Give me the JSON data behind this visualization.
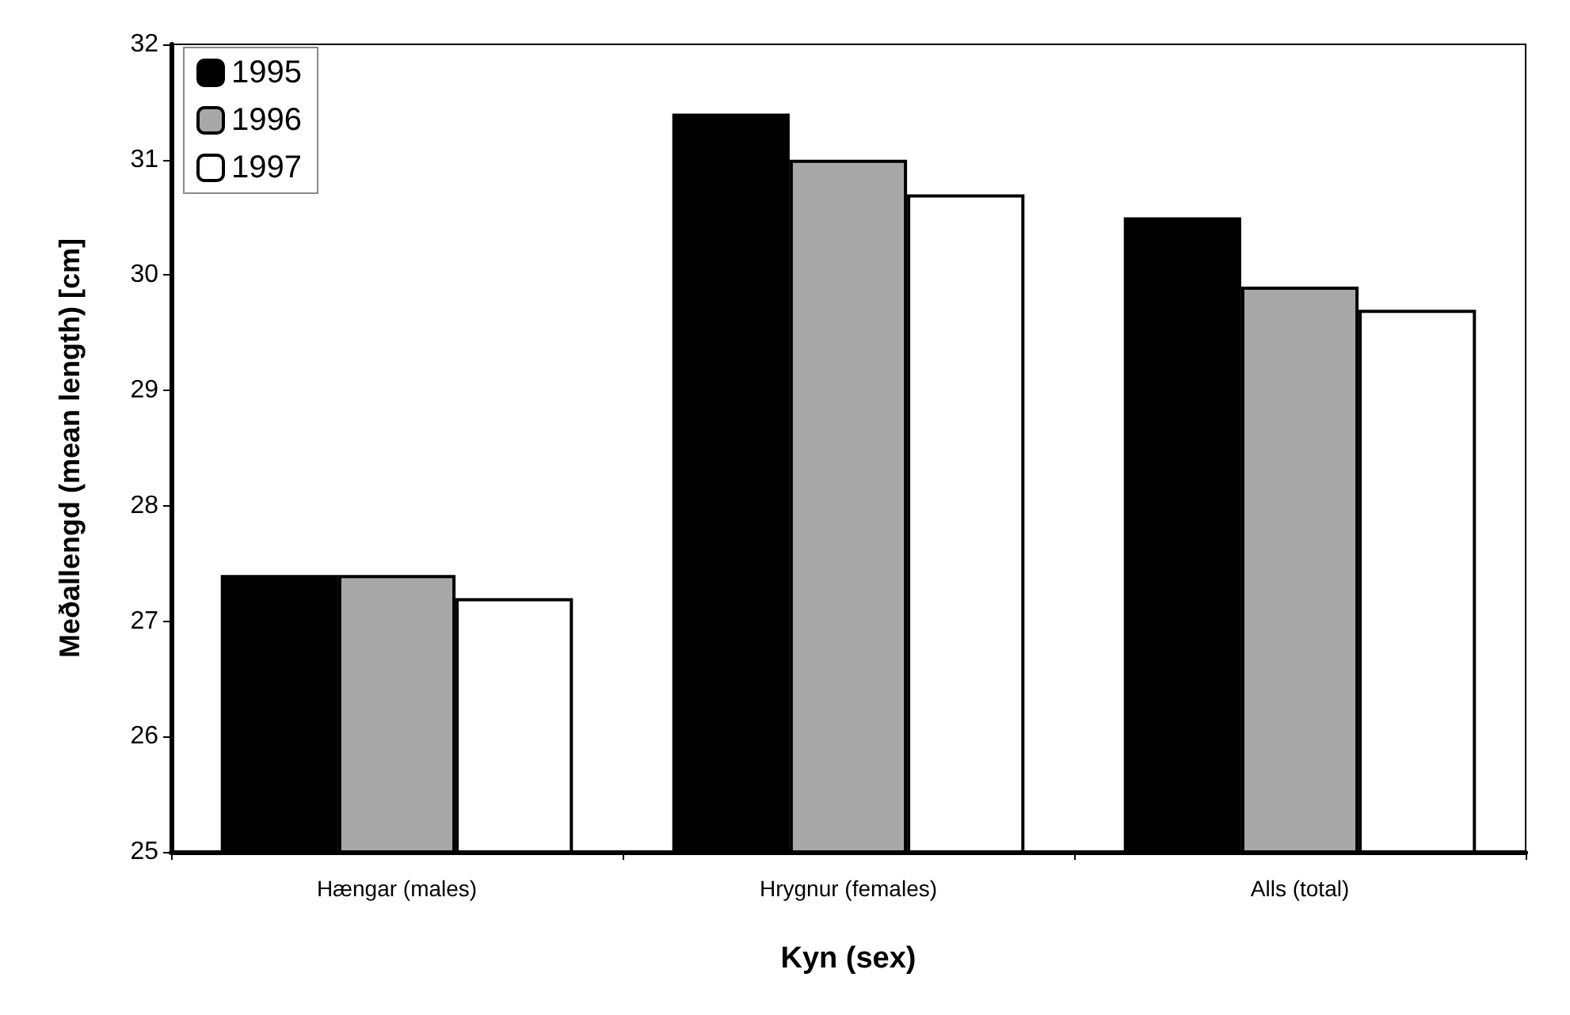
{
  "chart_data": {
    "type": "bar",
    "xlabel": "Kyn (sex)",
    "ylabel": "Meðallengd (mean length) [cm]",
    "categories": [
      "Hængar (males)",
      "Hrygnur (females)",
      "Alls (total)"
    ],
    "series": [
      {
        "name": "1995",
        "color": "#000000",
        "values": [
          27.4,
          31.4,
          30.5
        ]
      },
      {
        "name": "1996",
        "color": "#a8a8a8",
        "values": [
          27.4,
          31.0,
          29.9
        ]
      },
      {
        "name": "1997",
        "color": "#ffffff",
        "values": [
          27.2,
          30.7,
          29.7
        ]
      }
    ],
    "ylim": [
      25,
      32
    ],
    "yticks": [
      25,
      26,
      27,
      28,
      29,
      30,
      31,
      32
    ],
    "grid": false,
    "legend": "top left"
  }
}
